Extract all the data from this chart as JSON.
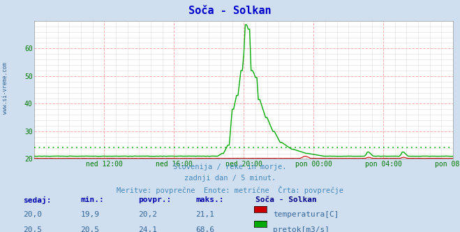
{
  "title": "Soča - Solkan",
  "title_color": "#0000cc",
  "background_color": "#d0dff0",
  "plot_bg_color": "#ffffff",
  "grid_major_color": "#ffaaaa",
  "grid_minor_color": "#dddddd",
  "tick_color": "#007700",
  "watermark": "www.si-vreme.com",
  "watermark_color": "#336699",
  "footer_line1": "Slovenija / reke in morje.",
  "footer_line2": "zadnji dan / 5 minut.",
  "footer_line3": "Meritve: povprečne  Enote: metrične  Črta: povprečje",
  "footer_color": "#4488bb",
  "temp_color": "#cc0000",
  "flow_color": "#00aa00",
  "temp_avg": 20.2,
  "flow_avg": 24.1,
  "ylim": [
    20,
    70
  ],
  "yticks": [
    20,
    30,
    40,
    50,
    60
  ],
  "xlim": [
    0,
    288
  ],
  "xtick_positions": [
    48,
    96,
    144,
    192,
    240,
    288
  ],
  "xtick_labels": [
    "ned 12:00",
    "ned 16:00",
    "ned 20:00",
    "pon 00:00",
    "pon 04:00",
    "pon 08:00"
  ],
  "table_header_color": "#0000aa",
  "table_value_color": "#336699",
  "table_headers": [
    "sedaj:",
    "min.:",
    "povpr.:",
    "maks.:"
  ],
  "legend_title": "Soča - Solkan",
  "legend_title_color": "#000088",
  "table_row1_vals": [
    "20,0",
    "19,9",
    "20,2",
    "21,1"
  ],
  "table_row1_label": "temperatura[C]",
  "table_row2_vals": [
    "20,5",
    "20,5",
    "24,1",
    "68,6"
  ],
  "table_row2_label": "pretok[m3/s]"
}
